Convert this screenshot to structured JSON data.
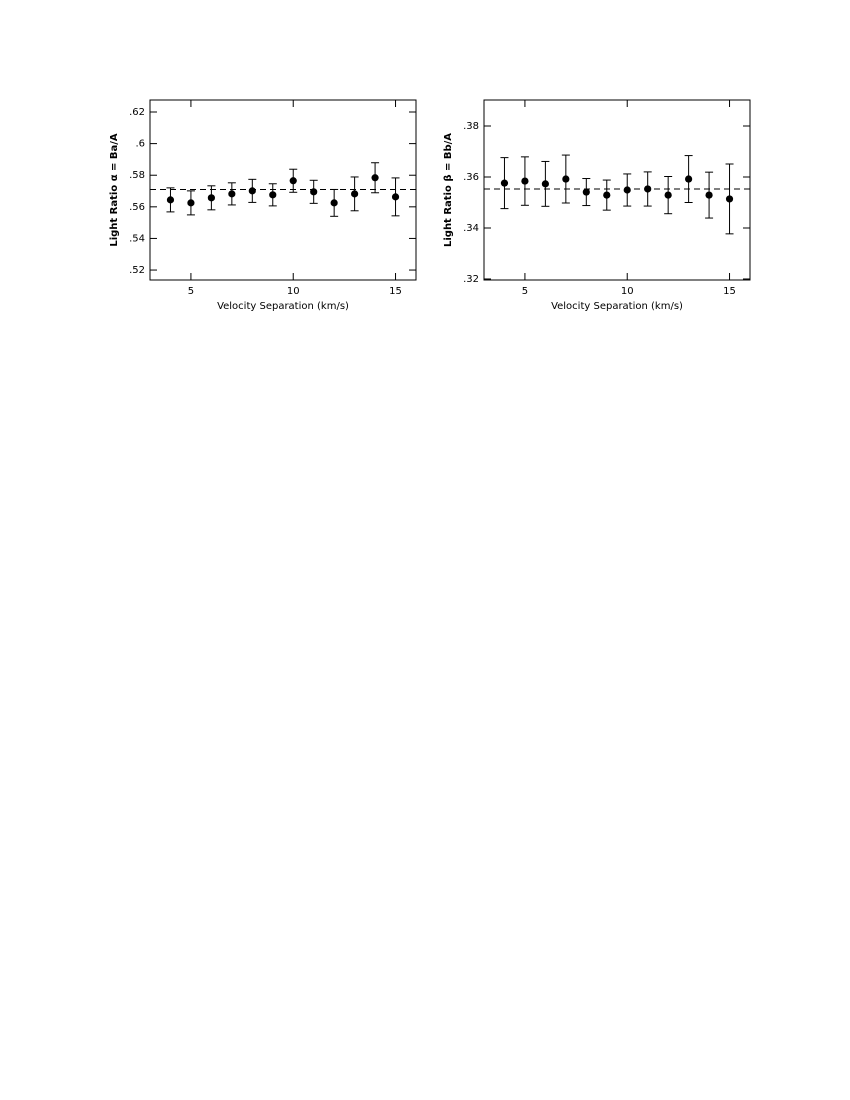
{
  "chart_data": [
    {
      "type": "scatter",
      "ylabel": "Light Ratio  α = Ba/A",
      "xlabel": "Velocity Separation (km/s)",
      "x": [
        4,
        5,
        6,
        7,
        8,
        9,
        10,
        11,
        12,
        13,
        14,
        15
      ],
      "values": [
        0.5644,
        0.5625,
        0.5657,
        0.5682,
        0.5701,
        0.5676,
        0.5765,
        0.5695,
        0.5625,
        0.5682,
        0.5784,
        0.5663
      ],
      "errors": [
        0.0076,
        0.0076,
        0.0076,
        0.007,
        0.0073,
        0.007,
        0.0073,
        0.0073,
        0.0085,
        0.0107,
        0.0095,
        0.012
      ],
      "hline": 0.571,
      "color": "#000000",
      "xlim": [
        3,
        16
      ],
      "xticks": [
        5,
        10,
        15
      ],
      "ylim": [
        0.5137,
        0.6276
      ],
      "yticks": [
        {
          "value": 0.52,
          "label": ".52"
        },
        {
          "value": 0.54,
          "label": ".54"
        },
        {
          "value": 0.56,
          "label": ".56"
        },
        {
          "value": 0.58,
          "label": ".58"
        },
        {
          "value": 0.6,
          "label": ".6"
        },
        {
          "value": 0.62,
          "label": ".62"
        }
      ]
    },
    {
      "type": "scatter",
      "ylabel": "Light Ratio  β = Bb/A",
      "xlabel": "Velocity Separation (km/s)",
      "x": [
        4,
        5,
        6,
        7,
        8,
        9,
        10,
        11,
        12,
        13,
        14,
        15
      ],
      "values": [
        0.3576,
        0.3584,
        0.3573,
        0.3592,
        0.3541,
        0.3529,
        0.3549,
        0.3553,
        0.3529,
        0.3592,
        0.3529,
        0.3514
      ],
      "errors": [
        0.01,
        0.0095,
        0.0088,
        0.0094,
        0.0053,
        0.0059,
        0.0063,
        0.0067,
        0.0073,
        0.0092,
        0.009,
        0.0137
      ],
      "hline": 0.3553,
      "color": "#000000",
      "xlim": [
        3,
        16
      ],
      "xticks": [
        5,
        10,
        15
      ],
      "ylim": [
        0.3196,
        0.3902
      ],
      "yticks": [
        {
          "value": 0.32,
          "label": ".32"
        },
        {
          "value": 0.34,
          "label": ".34"
        },
        {
          "value": 0.36,
          "label": ".36"
        },
        {
          "value": 0.38,
          "label": ".38"
        }
      ]
    }
  ]
}
